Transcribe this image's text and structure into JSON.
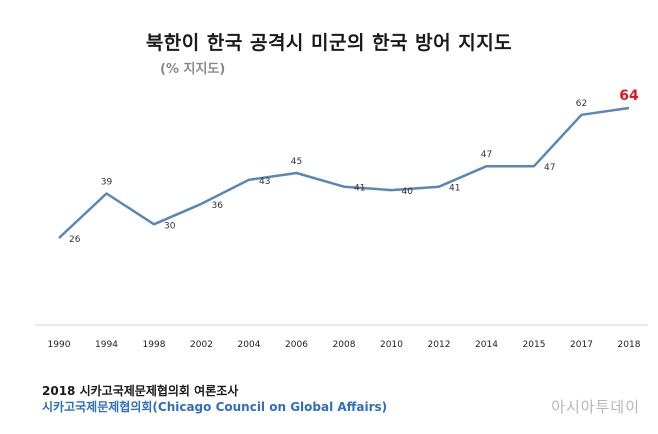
{
  "title": "북한이 한국 공격시 미군의 한국 방어 지지도",
  "subtitle": "(% 지지도)",
  "footer": {
    "line1": "2018 시카고국제문제협의회 여론조사",
    "line2": "시카고국제문제협의회(Chicago Council on Global Affairs)"
  },
  "watermark": "아시아투데이",
  "colors": {
    "line": "#5a86b8",
    "highlight": "#e8141c",
    "footer_link": "#2f6fc0"
  },
  "chart_data": {
    "type": "line",
    "title": "북한이 한국 공격시 미군의 한국 방어 지지도",
    "subtitle": "(% 지지도)",
    "categories": [
      "1990",
      "1994",
      "1998",
      "2002",
      "2004",
      "2006",
      "2008",
      "2010",
      "2012",
      "2014",
      "2015",
      "2017",
      "2018"
    ],
    "series": [
      {
        "values": [
          26,
          39,
          30,
          36,
          43,
          45,
          41,
          40,
          41,
          47,
          47,
          62,
          64
        ]
      }
    ],
    "ylim": [
      0,
      70
    ],
    "grid": false,
    "legend": "none"
  }
}
